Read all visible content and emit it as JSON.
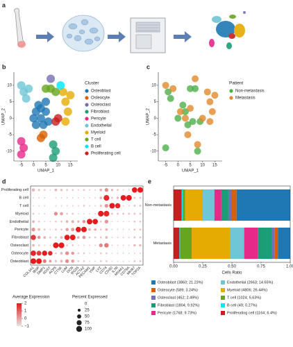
{
  "panel_a": {
    "label": "a"
  },
  "chart_data": [
    {
      "panel": "b",
      "type": "scatter",
      "xlabel": "UMAP_1",
      "ylabel": "UMAP_2",
      "xlim": [
        -8,
        18
      ],
      "ylim": [
        -13,
        14
      ],
      "xticks": [
        -5,
        0,
        5,
        10,
        15
      ],
      "yticks": [
        -10,
        -5,
        0,
        5,
        10
      ],
      "legend_title": "Cluster",
      "series": [
        {
          "name": "Osteoblast",
          "color": "#1f78b4",
          "x": [
            0,
            1,
            2,
            3,
            4,
            5,
            6,
            3,
            1,
            5
          ],
          "y": [
            0,
            2,
            4,
            0,
            -2,
            2,
            -1,
            3,
            -2,
            5
          ]
        },
        {
          "name": "Osteocyte",
          "color": "#d95f02",
          "x": [
            3,
            4
          ],
          "y": [
            -6,
            -5
          ]
        },
        {
          "name": "Osteoclast",
          "color": "#7570b3",
          "x": [
            7
          ],
          "y": [
            12
          ]
        },
        {
          "name": "Fibroblast",
          "color": "#1b9e77",
          "x": [
            8,
            9,
            8
          ],
          "y": [
            -8,
            -10,
            -12
          ]
        },
        {
          "name": "Pericyte",
          "color": "#e7298a",
          "x": [
            -5,
            -4,
            -5
          ],
          "y": [
            -7,
            -9,
            -11
          ]
        },
        {
          "name": "Endothelial",
          "color": "#6fc6d6",
          "x": [
            -4,
            -2,
            -3,
            -5
          ],
          "y": [
            8,
            9,
            6,
            10
          ]
        },
        {
          "name": "Myeloid",
          "color": "#e6ab02",
          "x": [
            13,
            14,
            13,
            15,
            12
          ],
          "y": [
            5,
            2,
            -1,
            7,
            8
          ]
        },
        {
          "name": "T cell",
          "color": "#66a61e",
          "x": [
            5,
            7,
            9
          ],
          "y": [
            9,
            9,
            8
          ]
        },
        {
          "name": "B cell",
          "color": "#00e5ff",
          "x": [
            11
          ],
          "y": [
            10
          ]
        },
        {
          "name": "Proliferating cell",
          "color": "#c81e1e",
          "x": [
            10,
            9
          ],
          "y": [
            0,
            -1
          ]
        }
      ]
    },
    {
      "panel": "c",
      "type": "scatter",
      "xlabel": "UMAP_1",
      "ylabel": "UMAP_2",
      "xlim": [
        -8,
        18
      ],
      "ylim": [
        -13,
        14
      ],
      "xticks": [
        -5,
        0,
        5,
        10,
        15
      ],
      "yticks": [
        -10,
        -5,
        0,
        5,
        10
      ],
      "legend_title": "Patient",
      "series": [
        {
          "name": "Non-metastasis",
          "color": "#4daf4a",
          "x": [
            0,
            2,
            4,
            6,
            3,
            -4,
            -3,
            8,
            5,
            7,
            9,
            -5
          ],
          "y": [
            0,
            4,
            -2,
            -1,
            2,
            8,
            6,
            -10,
            9,
            9,
            -1,
            -9
          ]
        },
        {
          "name": "Metastasis",
          "color": "#e08a2c",
          "x": [
            1,
            3,
            5,
            13,
            14,
            13,
            15,
            12,
            -2,
            -5,
            8,
            10,
            4,
            7
          ],
          "y": [
            2,
            0,
            3,
            5,
            2,
            -1,
            7,
            8,
            9,
            10,
            -8,
            0,
            -5,
            12
          ]
        }
      ]
    },
    {
      "panel": "d",
      "type": "dot",
      "rows": [
        "Proliferating cell",
        "B cell",
        "T cell",
        "Myeloid",
        "Endothelial",
        "Pericyte",
        "Fibroblast",
        "Osteoclast",
        "Osteocyte",
        "Osteoblast"
      ],
      "categories": [
        "COL1A1",
        "IBSP",
        "DMP1",
        "SOST",
        "ACP5",
        "CTSK",
        "LUM",
        "DCN",
        "RGS5",
        "ACTA2",
        "PECAM1",
        "VWF",
        "LYZ",
        "CD74",
        "CD3D",
        "IL7R",
        "MS4A1",
        "CD79A",
        "MKI67",
        "TOP2A"
      ],
      "percent": [
        [
          30,
          15,
          10,
          5,
          20,
          15,
          10,
          10,
          5,
          10,
          5,
          5,
          20,
          40,
          15,
          10,
          5,
          5,
          85,
          90
        ],
        [
          5,
          5,
          5,
          0,
          5,
          5,
          5,
          5,
          5,
          5,
          5,
          5,
          20,
          95,
          10,
          15,
          90,
          95,
          10,
          10
        ],
        [
          5,
          5,
          5,
          0,
          5,
          5,
          5,
          5,
          5,
          10,
          5,
          5,
          15,
          40,
          90,
          80,
          5,
          5,
          10,
          10
        ],
        [
          10,
          5,
          5,
          0,
          40,
          30,
          10,
          10,
          5,
          5,
          5,
          5,
          95,
          95,
          10,
          10,
          10,
          10,
          10,
          10
        ],
        [
          20,
          10,
          5,
          5,
          10,
          10,
          20,
          25,
          15,
          30,
          90,
          85,
          10,
          40,
          5,
          5,
          5,
          5,
          10,
          10
        ],
        [
          40,
          20,
          10,
          5,
          10,
          10,
          30,
          35,
          85,
          90,
          20,
          20,
          10,
          20,
          5,
          5,
          5,
          5,
          10,
          10
        ],
        [
          80,
          30,
          20,
          10,
          10,
          20,
          85,
          90,
          20,
          30,
          10,
          10,
          10,
          20,
          5,
          5,
          5,
          5,
          10,
          10
        ],
        [
          20,
          10,
          5,
          5,
          95,
          95,
          10,
          10,
          5,
          5,
          5,
          5,
          40,
          60,
          5,
          5,
          5,
          5,
          15,
          15
        ],
        [
          85,
          70,
          80,
          60,
          10,
          20,
          40,
          30,
          10,
          10,
          5,
          5,
          10,
          10,
          5,
          5,
          5,
          5,
          5,
          5
        ],
        [
          95,
          90,
          40,
          20,
          15,
          20,
          40,
          30,
          10,
          10,
          5,
          5,
          10,
          10,
          5,
          5,
          5,
          5,
          10,
          10
        ]
      ],
      "expression": [
        [
          -0.3,
          -0.5,
          -0.6,
          -0.6,
          -0.3,
          -0.4,
          -0.5,
          -0.5,
          -0.5,
          -0.4,
          -0.5,
          -0.5,
          -0.2,
          0.3,
          -0.3,
          -0.4,
          -0.5,
          -0.5,
          2,
          2
        ],
        [
          -0.7,
          -0.6,
          -0.6,
          -0.6,
          -0.6,
          -0.6,
          -0.6,
          -0.6,
          -0.6,
          -0.6,
          -0.6,
          -0.6,
          -0.3,
          1.8,
          -0.4,
          -0.2,
          2,
          2,
          -0.4,
          -0.4
        ],
        [
          -0.7,
          -0.6,
          -0.6,
          -0.6,
          -0.6,
          -0.6,
          -0.6,
          -0.6,
          -0.6,
          -0.5,
          -0.6,
          -0.6,
          -0.4,
          0.2,
          2,
          1.8,
          -0.5,
          -0.5,
          -0.4,
          -0.4
        ],
        [
          -0.6,
          -0.6,
          -0.6,
          -0.6,
          0.3,
          0,
          -0.5,
          -0.5,
          -0.6,
          -0.6,
          -0.6,
          -0.6,
          2,
          1.8,
          -0.4,
          -0.4,
          -0.4,
          -0.4,
          -0.4,
          -0.4
        ],
        [
          -0.3,
          -0.5,
          -0.6,
          -0.6,
          -0.5,
          -0.5,
          -0.3,
          -0.2,
          -0.2,
          0.2,
          2,
          2,
          -0.5,
          0.2,
          -0.6,
          -0.6,
          -0.6,
          -0.6,
          -0.4,
          -0.4
        ],
        [
          0.2,
          -0.3,
          -0.5,
          -0.6,
          -0.5,
          -0.5,
          0,
          0.1,
          2,
          2,
          -0.2,
          -0.2,
          -0.5,
          -0.3,
          -0.6,
          -0.6,
          -0.6,
          -0.6,
          -0.4,
          -0.4
        ],
        [
          1.5,
          0.2,
          -0.2,
          -0.4,
          -0.5,
          -0.3,
          2,
          2,
          -0.2,
          0.2,
          -0.5,
          -0.5,
          -0.5,
          -0.3,
          -0.6,
          -0.6,
          -0.6,
          -0.6,
          -0.4,
          -0.4
        ],
        [
          -0.3,
          -0.5,
          -0.6,
          -0.6,
          2,
          2,
          -0.5,
          -0.5,
          -0.6,
          -0.6,
          -0.6,
          -0.6,
          0.4,
          0.6,
          -0.6,
          -0.6,
          -0.6,
          -0.6,
          -0.3,
          -0.3
        ],
        [
          1.8,
          1.5,
          2,
          1.8,
          -0.5,
          -0.3,
          0.3,
          0.1,
          -0.5,
          -0.5,
          -0.6,
          -0.6,
          -0.5,
          -0.5,
          -0.6,
          -0.6,
          -0.6,
          -0.6,
          -0.5,
          -0.5
        ],
        [
          2,
          2,
          0.6,
          0.2,
          -0.4,
          -0.3,
          0.3,
          0.1,
          -0.5,
          -0.5,
          -0.6,
          -0.6,
          -0.5,
          -0.5,
          -0.6,
          -0.6,
          -0.6,
          -0.6,
          -0.4,
          -0.4
        ]
      ],
      "color_title": "Average Expression",
      "color_ticks": [
        2,
        1,
        0,
        {
          "value": -1,
          "label": "−1"
        }
      ],
      "colors": [
        "#e6e6e6",
        "#e41a1c"
      ],
      "size_title": "Percent Expressed",
      "size_ticks": [
        0,
        25,
        50,
        75,
        100
      ]
    },
    {
      "panel": "e",
      "type": "stacked_bar",
      "orientation": "horizontal",
      "categories": [
        "Non-metastasis",
        "Metastasis"
      ],
      "xlabel": "Cells Ratio",
      "xlim": [
        0,
        1
      ],
      "xticks": [
        {
          "value": 0,
          "label": "0.00"
        },
        {
          "value": 0.25,
          "label": "0.25"
        },
        {
          "value": 0.5,
          "label": "0.50"
        },
        {
          "value": 0.75,
          "label": "0.75"
        },
        {
          "value": 1,
          "label": "1.00"
        }
      ],
      "series": [
        {
          "name": "Proliferating cell (1164; 6.4%)",
          "color": "#c81e1e",
          "values": [
            0.07,
            0.05
          ]
        },
        {
          "name": "B cell (49; 0.27%)",
          "color": "#00e5ff",
          "values": [
            0.01,
            0.005
          ]
        },
        {
          "name": "T cell (1024; 5.63%)",
          "color": "#66a61e",
          "values": [
            0.02,
            0.1
          ]
        },
        {
          "name": "Myeloid (4806; 26.44%)",
          "color": "#e6ab02",
          "values": [
            0.15,
            0.33
          ]
        },
        {
          "name": "Endothelial (2663; 14.65%)",
          "color": "#6fc6d6",
          "values": [
            0.1,
            0.12
          ]
        },
        {
          "name": "Pericyte (1768; 9.73%)",
          "color": "#e7298a",
          "values": [
            0.06,
            0.12
          ]
        },
        {
          "name": "Fibroblast (1804; 9.92%)",
          "color": "#1b9e77",
          "values": [
            0.06,
            0.12
          ]
        },
        {
          "name": "Osteoclast (452; 2.49%)",
          "color": "#7570b3",
          "values": [
            0.03,
            0.02
          ]
        },
        {
          "name": "Osteocyte (589; 3.24%)",
          "color": "#d95f02",
          "values": [
            0.04,
            0.03
          ]
        },
        {
          "name": "Osteoblast (3860; 21.23%)",
          "color": "#1f78b4",
          "values": [
            0.46,
            0.105
          ]
        }
      ]
    }
  ]
}
